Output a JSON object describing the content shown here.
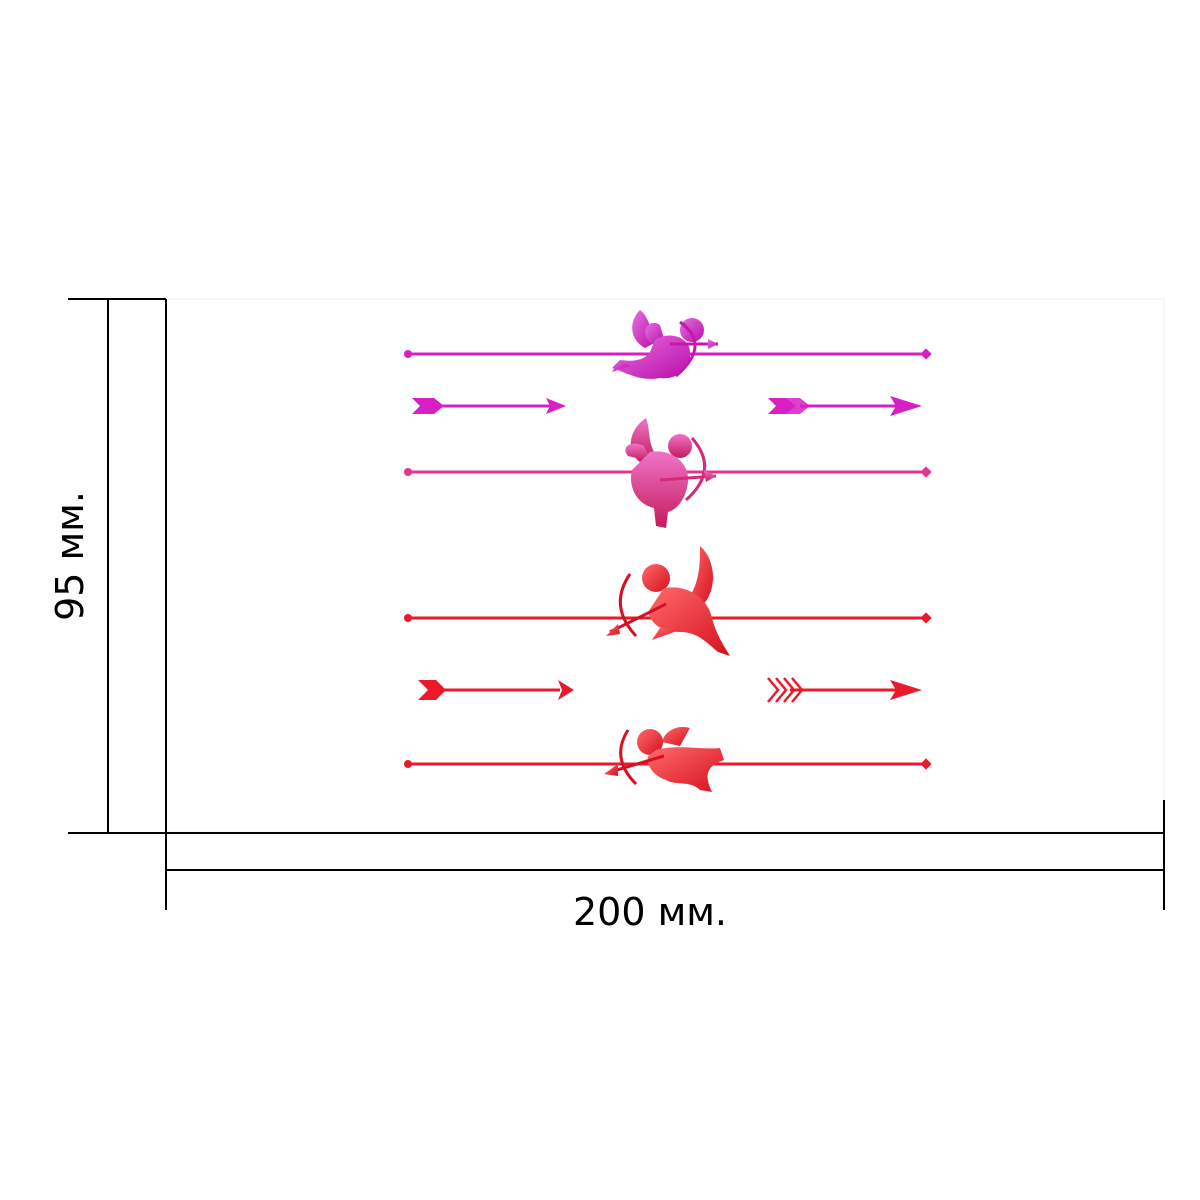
{
  "dimensions": {
    "width_label": "200 мм.",
    "height_label": "95 мм."
  },
  "design": {
    "motif": "cupid-with-bow",
    "colors": {
      "magenta": "#d81fc4",
      "pink": "#e4358f",
      "red": "#ea1a2b",
      "dimension_lines": "#000000",
      "sticker_border": "#e6e8f0"
    },
    "rows": [
      {
        "kind": "line-with-cupid",
        "color": "magenta",
        "cupid_icon": "cupid-aiming-right-icon"
      },
      {
        "kind": "arrow-pair",
        "color": "magenta"
      },
      {
        "kind": "line-with-cupid",
        "color": "pink",
        "cupid_icon": "cupid-aiming-right-icon"
      },
      {
        "kind": "line-with-cupid",
        "color": "red",
        "cupid_icon": "cupid-aiming-left-icon"
      },
      {
        "kind": "arrow-pair",
        "color": "red"
      },
      {
        "kind": "line-with-cupid",
        "color": "red",
        "cupid_icon": "cupid-aiming-left-icon"
      }
    ]
  }
}
